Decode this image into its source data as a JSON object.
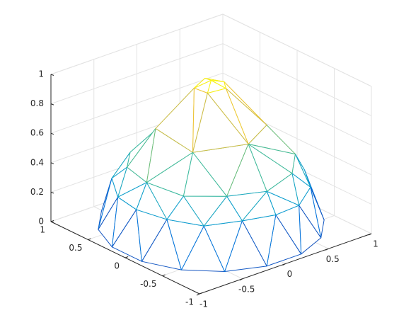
{
  "chart_data": {
    "type": "mesh",
    "xlim": [
      -1,
      1
    ],
    "ylim": [
      -1,
      1
    ],
    "zlim": [
      0,
      1
    ],
    "xticks": [
      -1,
      -0.5,
      0,
      0.5,
      1
    ],
    "yticks": [
      -1,
      -0.5,
      0,
      0.5,
      1
    ],
    "zticks": [
      0,
      0.2,
      0.4,
      0.6,
      0.8,
      1
    ],
    "grid": true,
    "colormap": "parula",
    "rings": [
      {
        "x": [
          0
        ],
        "y": [
          0
        ],
        "z": [
          1
        ]
      },
      {
        "x": [
          0.15,
          0.05,
          -0.12,
          -0.12,
          0.05
        ],
        "y": [
          0,
          0.14,
          0.09,
          -0.09,
          -0.14
        ],
        "z": [
          0.96,
          0.97,
          0.95,
          0.96,
          0.97
        ]
      },
      {
        "x": [
          0.43,
          0,
          -0.43,
          -0.43,
          0,
          0.43
        ],
        "y": [
          0.25,
          0.5,
          0.25,
          -0.25,
          -0.5,
          -0.25
        ],
        "z": [
          0.68,
          0.65,
          0.7,
          0.66,
          0.69,
          0.67
        ]
      },
      {
        "x": [
          0.75,
          0.65,
          0.38,
          0,
          -0.38,
          -0.65,
          -0.75,
          -0.65,
          -0.38,
          0,
          0.38,
          0.65
        ],
        "y": [
          0,
          0.38,
          0.65,
          0.75,
          0.65,
          0.38,
          0,
          -0.38,
          -0.65,
          -0.75,
          -0.65,
          -0.38
        ],
        "z": [
          0.45,
          0.44,
          0.46,
          0.45,
          0.43,
          0.45,
          0.46,
          0.44,
          0.45,
          0.43,
          0.45,
          0.46
        ]
      },
      {
        "x": [
          0.87,
          0.8,
          0.62,
          0.33,
          0,
          -0.33,
          -0.62,
          -0.8,
          -0.87,
          -0.8,
          -0.62,
          -0.33,
          0,
          0.33,
          0.62,
          0.8
        ],
        "y": [
          0,
          0.33,
          0.62,
          0.8,
          0.87,
          0.8,
          0.62,
          0.33,
          0,
          -0.33,
          -0.62,
          -0.8,
          -0.87,
          -0.8,
          -0.62,
          -0.33
        ],
        "z": [
          0.3,
          0.29,
          0.31,
          0.3,
          0.28,
          0.3,
          0.31,
          0.29,
          0.3,
          0.3,
          0.29,
          0.31,
          0.3,
          0.28,
          0.3,
          0.31
        ]
      },
      {
        "x": [
          0.98,
          0.83,
          0.56,
          0.2,
          -0.2,
          -0.56,
          -0.83,
          -0.98,
          -0.98,
          -0.83,
          -0.56,
          -0.2,
          0.2,
          0.56,
          0.83,
          0.98
        ],
        "y": [
          0.2,
          0.56,
          0.83,
          0.98,
          0.98,
          0.83,
          0.56,
          0.2,
          -0.2,
          -0.56,
          -0.83,
          -0.98,
          -0.98,
          -0.83,
          -0.56,
          -0.2
        ],
        "z": [
          0.02,
          0.02,
          0.02,
          0.02,
          0.02,
          0.02,
          0.02,
          0.02,
          0.02,
          0.02,
          0.02,
          0.02,
          0.02,
          0.02,
          0.02,
          0.02
        ]
      }
    ]
  }
}
